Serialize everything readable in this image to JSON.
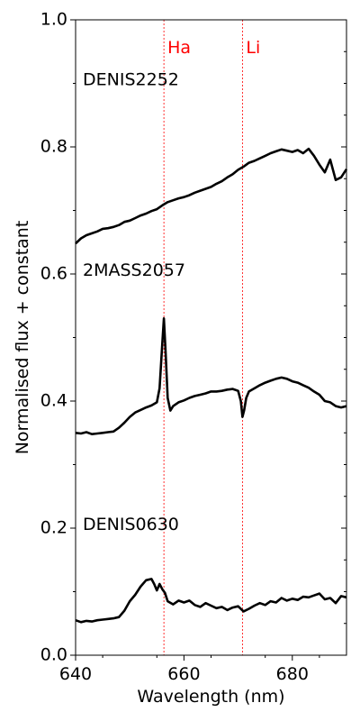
{
  "chart_data": {
    "type": "line",
    "xlabel": "Wavelength (nm)",
    "ylabel": "Normalised flux + constant",
    "xlim": [
      640,
      690
    ],
    "ylim": [
      0.0,
      1.0
    ],
    "xticks": [
      640,
      660,
      680
    ],
    "xtick_labels": [
      "640",
      "660",
      "680"
    ],
    "yticks": [
      0.0,
      0.2,
      0.4,
      0.6,
      0.8,
      1.0
    ],
    "ytick_labels": [
      "0.0",
      "0.2",
      "0.4",
      "0.6",
      "0.8",
      "1.0"
    ],
    "grid": false,
    "reference_lines": [
      {
        "label": "Ha",
        "x": 656.3,
        "color": "#ff0000"
      },
      {
        "label": "Li",
        "x": 670.8,
        "color": "#ff0000"
      }
    ],
    "series": [
      {
        "name": "DENIS2252",
        "label_position": {
          "x": 641,
          "y": 0.905
        },
        "color": "#000000",
        "x": [
          640,
          641,
          642,
          643,
          644,
          645,
          646,
          647,
          648,
          649,
          650,
          651,
          652,
          653,
          654,
          655,
          656,
          657,
          658,
          659,
          660,
          661,
          662,
          663,
          664,
          665,
          666,
          667,
          668,
          669,
          670,
          671,
          672,
          673,
          674,
          675,
          676,
          677,
          678,
          679,
          680,
          681,
          682,
          683,
          684,
          685,
          686,
          687,
          688,
          689,
          690
        ],
        "y": [
          0.648,
          0.656,
          0.661,
          0.664,
          0.667,
          0.671,
          0.672,
          0.674,
          0.677,
          0.682,
          0.684,
          0.688,
          0.692,
          0.695,
          0.699,
          0.702,
          0.708,
          0.713,
          0.716,
          0.719,
          0.721,
          0.724,
          0.728,
          0.731,
          0.734,
          0.737,
          0.742,
          0.746,
          0.752,
          0.757,
          0.764,
          0.769,
          0.775,
          0.778,
          0.782,
          0.786,
          0.79,
          0.793,
          0.796,
          0.794,
          0.792,
          0.795,
          0.79,
          0.797,
          0.786,
          0.772,
          0.76,
          0.78,
          0.748,
          0.752,
          0.765
        ]
      },
      {
        "name": "2MASS2057",
        "label_position": {
          "x": 641,
          "y": 0.605
        },
        "color": "#000000",
        "x": [
          640,
          641,
          642,
          643,
          644,
          645,
          646,
          647,
          648,
          649,
          650,
          651,
          652,
          653,
          654,
          655,
          655.5,
          656,
          656.3,
          656.6,
          657,
          657.5,
          658,
          659,
          660,
          661,
          662,
          663,
          664,
          665,
          666,
          667,
          668,
          669,
          670,
          670.5,
          670.8,
          671.1,
          671.5,
          672,
          673,
          674,
          675,
          676,
          677,
          678,
          679,
          680,
          681,
          682,
          683,
          684,
          685,
          686,
          687,
          688,
          689,
          690
        ],
        "y": [
          0.35,
          0.349,
          0.351,
          0.348,
          0.349,
          0.35,
          0.351,
          0.352,
          0.358,
          0.366,
          0.375,
          0.382,
          0.386,
          0.39,
          0.393,
          0.398,
          0.42,
          0.49,
          0.53,
          0.48,
          0.405,
          0.385,
          0.392,
          0.398,
          0.401,
          0.405,
          0.408,
          0.41,
          0.412,
          0.415,
          0.415,
          0.416,
          0.418,
          0.419,
          0.416,
          0.4,
          0.375,
          0.385,
          0.405,
          0.415,
          0.42,
          0.425,
          0.429,
          0.432,
          0.435,
          0.437,
          0.435,
          0.431,
          0.429,
          0.425,
          0.421,
          0.415,
          0.41,
          0.4,
          0.398,
          0.392,
          0.39,
          0.392
        ]
      },
      {
        "name": "DENIS0630",
        "label_position": {
          "x": 641,
          "y": 0.205
        },
        "color": "#000000",
        "x": [
          640,
          641,
          642,
          643,
          644,
          645,
          646,
          647,
          648,
          649,
          650,
          651,
          652,
          653,
          654,
          654.5,
          655,
          655.5,
          656,
          656.5,
          657,
          658,
          659,
          660,
          661,
          662,
          663,
          664,
          665,
          666,
          667,
          668,
          669,
          670,
          671,
          672,
          673,
          674,
          675,
          676,
          677,
          678,
          679,
          680,
          681,
          682,
          683,
          684,
          685,
          686,
          687,
          688,
          689,
          690
        ],
        "y": [
          0.055,
          0.052,
          0.054,
          0.053,
          0.055,
          0.056,
          0.057,
          0.058,
          0.06,
          0.07,
          0.085,
          0.095,
          0.108,
          0.118,
          0.12,
          0.112,
          0.102,
          0.112,
          0.104,
          0.098,
          0.085,
          0.08,
          0.086,
          0.083,
          0.086,
          0.079,
          0.076,
          0.082,
          0.078,
          0.074,
          0.076,
          0.071,
          0.075,
          0.077,
          0.069,
          0.073,
          0.078,
          0.082,
          0.079,
          0.085,
          0.083,
          0.09,
          0.086,
          0.089,
          0.087,
          0.092,
          0.091,
          0.094,
          0.097,
          0.088,
          0.09,
          0.082,
          0.093,
          0.091
        ]
      }
    ]
  }
}
